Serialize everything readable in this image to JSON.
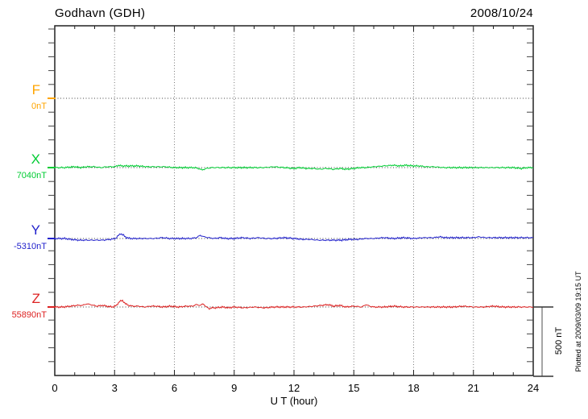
{
  "header": {
    "title": "Godhavn (GDH)",
    "date": "2008/10/24"
  },
  "side_note": {
    "text": "Plotted at 2009/03/09 19:15 UT"
  },
  "chart_data": {
    "type": "line",
    "title": "Godhavn (GDH)",
    "date": "2008/10/24",
    "xlabel": "U T (hour)",
    "xlim": [
      0,
      24
    ],
    "x_ticks": [
      0,
      3,
      6,
      9,
      12,
      15,
      18,
      21,
      24
    ],
    "x_minor_tick_step_hours": 1,
    "grid_hours": [
      3,
      6,
      9,
      12,
      15,
      18,
      21
    ],
    "y_unit": "nT",
    "y_minor_tick_step_nT": 100,
    "scale_bar_label": "500 nT",
    "scale_bar_nT": 500,
    "axis_color": "#222222",
    "grid_color": "#777777",
    "series": [
      {
        "name": "F",
        "baseline_label": "0nT",
        "baseline_value_nT": 0,
        "color": "#FFA500",
        "points": []
      },
      {
        "name": "X",
        "baseline_label": "7040nT",
        "baseline_value_nT": 7040,
        "color": "#00CC33",
        "points": [
          [
            0,
            0
          ],
          [
            0.5,
            0
          ],
          [
            1,
            6
          ],
          [
            1.3,
            0
          ],
          [
            1.6,
            6
          ],
          [
            2,
            6
          ],
          [
            2.3,
            0
          ],
          [
            2.6,
            6
          ],
          [
            3,
            6
          ],
          [
            3.2,
            17
          ],
          [
            3.35,
            12
          ],
          [
            3.5,
            12
          ],
          [
            3.8,
            12
          ],
          [
            4.2,
            12
          ],
          [
            4.6,
            6
          ],
          [
            5,
            6
          ],
          [
            5.5,
            6
          ],
          [
            6,
            0
          ],
          [
            6.5,
            0
          ],
          [
            7,
            0
          ],
          [
            7.2,
            -6
          ],
          [
            7.4,
            -17
          ],
          [
            7.6,
            -6
          ],
          [
            7.9,
            0
          ],
          [
            8.5,
            0
          ],
          [
            9,
            0
          ],
          [
            9.5,
            0
          ],
          [
            10,
            0
          ],
          [
            10.5,
            0
          ],
          [
            11,
            6
          ],
          [
            11.5,
            0
          ],
          [
            12,
            -6
          ],
          [
            12.3,
            0
          ],
          [
            12.6,
            -6
          ],
          [
            13,
            -6
          ],
          [
            13.3,
            -12
          ],
          [
            13.6,
            -6
          ],
          [
            14,
            -12
          ],
          [
            14.3,
            -6
          ],
          [
            14.6,
            -12
          ],
          [
            15,
            -6
          ],
          [
            15.3,
            0
          ],
          [
            15.6,
            0
          ],
          [
            16,
            6
          ],
          [
            16.5,
            12
          ],
          [
            17,
            17
          ],
          [
            17.3,
            12
          ],
          [
            17.6,
            17
          ],
          [
            18,
            12
          ],
          [
            18.3,
            12
          ],
          [
            18.6,
            6
          ],
          [
            19,
            6
          ],
          [
            19.5,
            0
          ],
          [
            20,
            0
          ],
          [
            21,
            0
          ],
          [
            21.5,
            0
          ],
          [
            22,
            0
          ],
          [
            22.5,
            0
          ],
          [
            23,
            0
          ],
          [
            23.4,
            -6
          ],
          [
            23.7,
            0
          ],
          [
            24,
            0
          ]
        ]
      },
      {
        "name": "Y",
        "baseline_label": "-5310nT",
        "baseline_value_nT": -5310,
        "color": "#2222CC",
        "points": [
          [
            0,
            0
          ],
          [
            0.5,
            0
          ],
          [
            0.8,
            -6
          ],
          [
            1.2,
            -12
          ],
          [
            1.6,
            -12
          ],
          [
            2,
            -12
          ],
          [
            2.4,
            -12
          ],
          [
            2.8,
            -6
          ],
          [
            3.05,
            0
          ],
          [
            3.2,
            23
          ],
          [
            3.3,
            35
          ],
          [
            3.45,
            23
          ],
          [
            3.6,
            6
          ],
          [
            3.8,
            0
          ],
          [
            4.2,
            0
          ],
          [
            4.6,
            0
          ],
          [
            5,
            0
          ],
          [
            5.4,
            6
          ],
          [
            5.8,
            0
          ],
          [
            6.3,
            0
          ],
          [
            6.8,
            0
          ],
          [
            7.1,
            6
          ],
          [
            7.3,
            23
          ],
          [
            7.5,
            12
          ],
          [
            7.7,
            6
          ],
          [
            8,
            0
          ],
          [
            8.3,
            6
          ],
          [
            8.6,
            0
          ],
          [
            9,
            0
          ],
          [
            9.4,
            6
          ],
          [
            9.8,
            0
          ],
          [
            10.2,
            6
          ],
          [
            10.6,
            0
          ],
          [
            11,
            0
          ],
          [
            11.5,
            6
          ],
          [
            12,
            0
          ],
          [
            12.4,
            -6
          ],
          [
            12.8,
            -6
          ],
          [
            13.2,
            -12
          ],
          [
            13.6,
            -12
          ],
          [
            14,
            -12
          ],
          [
            14.4,
            -12
          ],
          [
            14.8,
            -6
          ],
          [
            15.2,
            -6
          ],
          [
            15.6,
            0
          ],
          [
            16,
            0
          ],
          [
            16.5,
            6
          ],
          [
            17,
            0
          ],
          [
            17.5,
            6
          ],
          [
            18,
            0
          ],
          [
            18.5,
            6
          ],
          [
            19,
            6
          ],
          [
            19.3,
            12
          ],
          [
            19.6,
            6
          ],
          [
            20,
            6
          ],
          [
            20.5,
            6
          ],
          [
            21,
            6
          ],
          [
            21.3,
            12
          ],
          [
            21.6,
            6
          ],
          [
            22,
            6
          ],
          [
            22.5,
            6
          ],
          [
            23,
            6
          ],
          [
            23.5,
            6
          ],
          [
            24,
            6
          ]
        ]
      },
      {
        "name": "Z",
        "baseline_label": "55890nT",
        "baseline_value_nT": 55890,
        "color": "#DD2222",
        "points": [
          [
            0,
            0
          ],
          [
            0.4,
            0
          ],
          [
            0.8,
            6
          ],
          [
            1.1,
            12
          ],
          [
            1.4,
            12
          ],
          [
            1.6,
            23
          ],
          [
            1.8,
            17
          ],
          [
            2.1,
            6
          ],
          [
            2.4,
            12
          ],
          [
            2.6,
            6
          ],
          [
            2.9,
            0
          ],
          [
            3.1,
            12
          ],
          [
            3.25,
            41
          ],
          [
            3.4,
            46
          ],
          [
            3.55,
            23
          ],
          [
            3.7,
            12
          ],
          [
            3.9,
            6
          ],
          [
            4.2,
            6
          ],
          [
            4.5,
            0
          ],
          [
            4.8,
            6
          ],
          [
            5.1,
            6
          ],
          [
            5.4,
            0
          ],
          [
            5.8,
            6
          ],
          [
            6.2,
            0
          ],
          [
            6.6,
            6
          ],
          [
            6.9,
            6
          ],
          [
            7.1,
            17
          ],
          [
            7.3,
            12
          ],
          [
            7.45,
            23
          ],
          [
            7.6,
            0
          ],
          [
            7.75,
            -12
          ],
          [
            7.9,
            -6
          ],
          [
            8.1,
            -6
          ],
          [
            8.4,
            0
          ],
          [
            8.7,
            -6
          ],
          [
            9,
            0
          ],
          [
            9.5,
            -6
          ],
          [
            10,
            0
          ],
          [
            10.5,
            -6
          ],
          [
            11,
            0
          ],
          [
            11.5,
            0
          ],
          [
            12,
            0
          ],
          [
            12.5,
            0
          ],
          [
            13,
            6
          ],
          [
            13.4,
            12
          ],
          [
            13.7,
            17
          ],
          [
            14,
            6
          ],
          [
            14.3,
            12
          ],
          [
            14.6,
            0
          ],
          [
            15,
            6
          ],
          [
            15.4,
            0
          ],
          [
            15.6,
            17
          ],
          [
            15.8,
            6
          ],
          [
            16,
            0
          ],
          [
            16.5,
            0
          ],
          [
            17,
            6
          ],
          [
            17.5,
            0
          ],
          [
            18,
            0
          ],
          [
            18.5,
            0
          ],
          [
            19,
            0
          ],
          [
            19.5,
            0
          ],
          [
            20,
            0
          ],
          [
            20.5,
            6
          ],
          [
            21,
            0
          ],
          [
            21.5,
            0
          ],
          [
            22,
            6
          ],
          [
            22.5,
            0
          ],
          [
            23,
            0
          ],
          [
            23.5,
            0
          ],
          [
            24,
            0
          ]
        ]
      }
    ]
  }
}
